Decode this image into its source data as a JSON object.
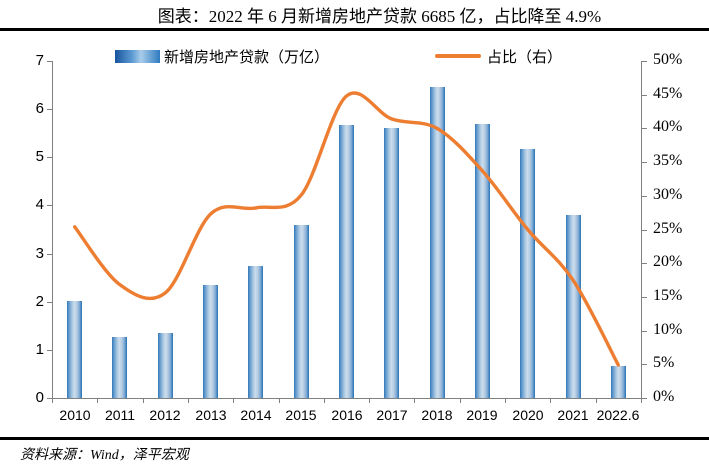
{
  "figure": {
    "title": "图表：2022 年 6 月新增房地产贷款 6685 亿，占比降至 4.9%",
    "source": "资料来源：Wind，泽平宏观"
  },
  "legend": {
    "bar_series_label": "新增房地产贷款（万亿）",
    "line_series_label": "占比（右）"
  },
  "colors": {
    "bar_edge": "#2E75B6",
    "bar_highlight": "#CBDCEC",
    "line": "#ED7D31",
    "axis": "#808080",
    "rule": "#000000",
    "text": "#000000",
    "background": "#FFFFFF"
  },
  "chart_data": {
    "type": "combo-bar-line",
    "title": "图表：2022 年 6 月新增房地产贷款 6685 亿，占比降至 4.9%",
    "categories": [
      "2010",
      "2011",
      "2012",
      "2013",
      "2014",
      "2015",
      "2016",
      "2017",
      "2018",
      "2019",
      "2020",
      "2021",
      "2022.6"
    ],
    "series": [
      {
        "name": "新增房地产贷款（万亿）",
        "type": "bar",
        "y_axis": "left",
        "values": [
          2.02,
          1.26,
          1.35,
          2.34,
          2.75,
          3.59,
          5.67,
          5.6,
          6.45,
          5.7,
          5.17,
          3.81,
          0.67
        ]
      },
      {
        "name": "占比（右）",
        "type": "line",
        "y_axis": "right",
        "smooth": true,
        "unit": "%",
        "values": [
          25.4,
          16.8,
          15.6,
          27.3,
          28.2,
          30.1,
          44.8,
          41.4,
          40.0,
          33.7,
          25.0,
          17.5,
          4.9
        ]
      }
    ],
    "left_axis": {
      "min": 0,
      "max": 7,
      "step": 1,
      "tick_labels": [
        "0",
        "1",
        "2",
        "3",
        "4",
        "5",
        "6",
        "7"
      ]
    },
    "right_axis": {
      "min": 0,
      "max": 50,
      "step": 5,
      "tick_labels": [
        "0%",
        "5%",
        "10%",
        "15%",
        "20%",
        "25%",
        "30%",
        "35%",
        "40%",
        "45%",
        "50%"
      ]
    },
    "grid": false,
    "legend_position": "top-center"
  }
}
